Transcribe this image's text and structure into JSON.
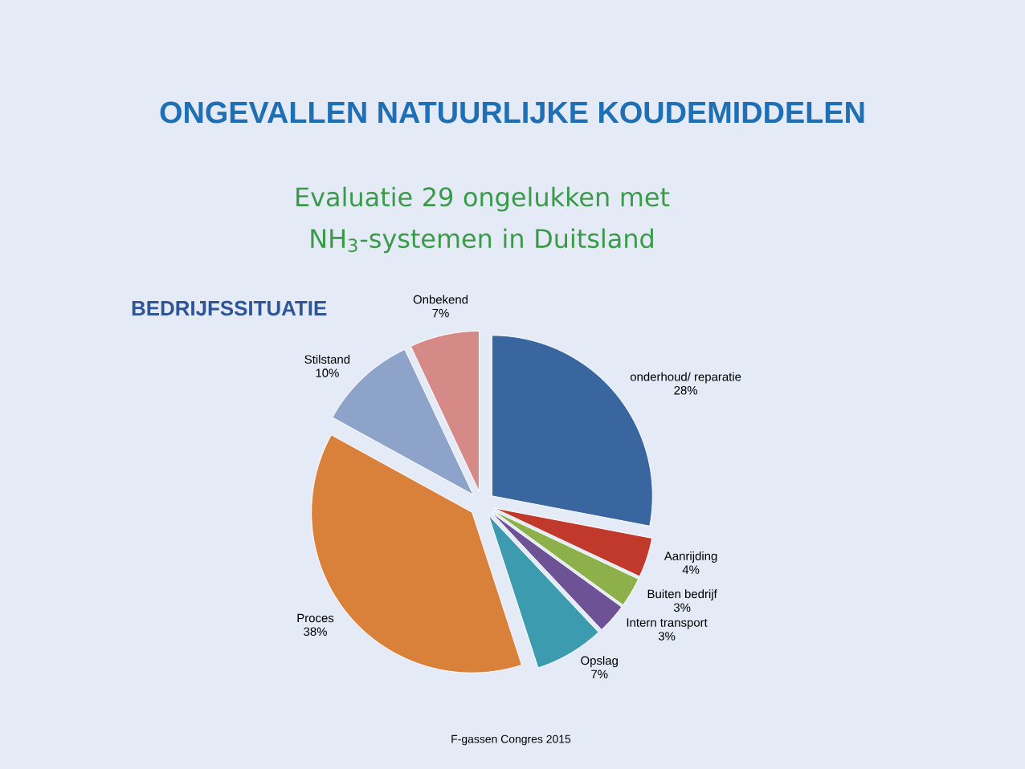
{
  "chart_data": {
    "type": "pie",
    "title": "ONGEVALLEN NATUURLIJKE KOUDEMIDDELEN",
    "subtitle": "Evaluatie 29 ongelukken met NH$_{3}$-systemen in Duitsland",
    "annotations": [
      "BEDRIJFSSITUATIE",
      "F-gassen Congres 2015"
    ],
    "categories": [
      "onderhoud/ reparatie",
      "Aanrijding",
      "Buiten bedrijf",
      "Intern transport",
      "Opslag",
      "Proces",
      "Stilstand",
      "Onbekend"
    ],
    "values": [
      28,
      4,
      3,
      3,
      7,
      38,
      10,
      7
    ],
    "colors": [
      "#3a66a0",
      "#c0392b",
      "#8db04a",
      "#6e5296",
      "#3d9bb0",
      "#d9803a",
      "#8ea3c9",
      "#d58a88"
    ],
    "value_labels": [
      "28%",
      "4%",
      "3%",
      "3%",
      "7%",
      "38%",
      "10%",
      "7%"
    ]
  }
}
